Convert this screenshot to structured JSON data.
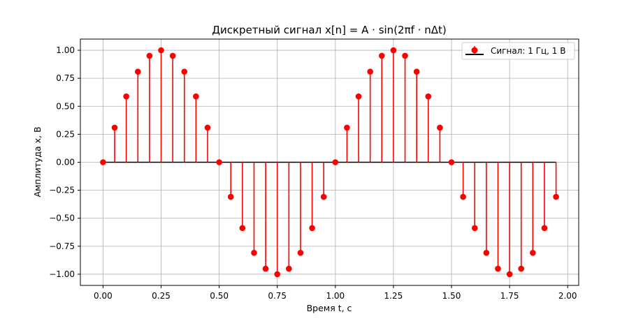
{
  "chart_data": {
    "type": "stem",
    "title": "Дискретный сигнал x[n] = A · sin(2πf · nΔt)",
    "xlabel": "Время t, с",
    "ylabel": "Амплитуда x, В",
    "xlim": [
      -0.0975,
      2.0475
    ],
    "ylim": [
      -1.1,
      1.1
    ],
    "xticks": [
      0.0,
      0.25,
      0.5,
      0.75,
      1.0,
      1.25,
      1.5,
      1.75,
      2.0
    ],
    "xtick_labels": [
      "0.00",
      "0.25",
      "0.50",
      "0.75",
      "1.00",
      "1.25",
      "1.50",
      "1.75",
      "2.00"
    ],
    "yticks": [
      -1.0,
      -0.75,
      -0.5,
      -0.25,
      0.0,
      0.25,
      0.5,
      0.75,
      1.0
    ],
    "ytick_labels": [
      "−1.00",
      "−0.75",
      "−0.50",
      "−0.25",
      "0.00",
      "0.25",
      "0.50",
      "0.75",
      "1.00"
    ],
    "grid": true,
    "legend_position": "top-right",
    "series": [
      {
        "name": "Сигнал: 1 Гц, 1 В",
        "color": "#ff0000",
        "baseline_color": "#000000",
        "x": [
          0.0,
          0.05,
          0.1,
          0.15,
          0.2,
          0.25,
          0.3,
          0.35,
          0.4,
          0.45,
          0.5,
          0.55,
          0.6,
          0.65,
          0.7,
          0.75,
          0.8,
          0.85,
          0.9,
          0.95,
          1.0,
          1.05,
          1.1,
          1.15,
          1.2,
          1.25,
          1.3,
          1.35,
          1.4,
          1.45,
          1.5,
          1.55,
          1.6,
          1.65,
          1.7,
          1.75,
          1.8,
          1.85,
          1.9,
          1.95
        ],
        "y": [
          0.0,
          0.309,
          0.588,
          0.809,
          0.951,
          1.0,
          0.951,
          0.809,
          0.588,
          0.309,
          0.0,
          -0.309,
          -0.588,
          -0.809,
          -0.951,
          -1.0,
          -0.951,
          -0.809,
          -0.588,
          -0.309,
          0.0,
          0.309,
          0.588,
          0.809,
          0.951,
          1.0,
          0.951,
          0.809,
          0.588,
          0.309,
          0.0,
          -0.309,
          -0.588,
          -0.809,
          -0.951,
          -1.0,
          -0.951,
          -0.809,
          -0.588,
          -0.309
        ]
      }
    ]
  }
}
